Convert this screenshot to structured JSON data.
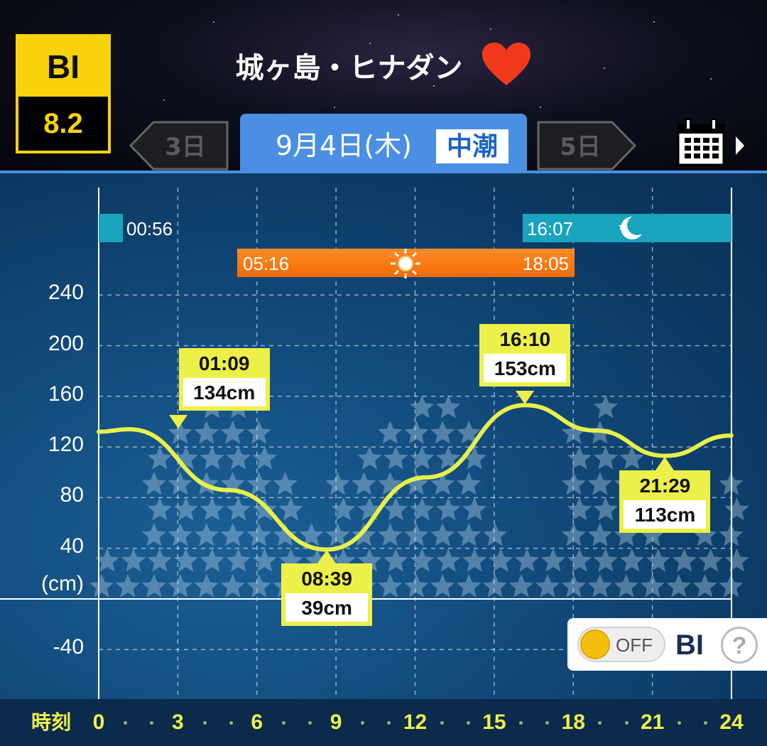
{
  "header": {
    "bi_label": "BI",
    "bi_value": "8.2",
    "spot_name": "城ヶ島・ヒナダン",
    "favorite_icon": "heart-icon",
    "prev_day": "3日",
    "next_day": "5日",
    "current_date": "9月4日(木)",
    "tide_type": "中潮",
    "calendar_icon": "calendar-icon"
  },
  "colors": {
    "accent_blue": "#4a8fe2",
    "bi_yellow": "#f7d20d",
    "curve": "#e8f04a",
    "sun_bar": "#f36b00",
    "moon_bar": "#1aa3bd",
    "heart": "#f0391c"
  },
  "moon": {
    "moonset": "00:56",
    "moonrise": "16:07",
    "icon": "moon-icon"
  },
  "sun": {
    "sunrise": "05:16",
    "sunset": "18:05",
    "icon": "sun-icon"
  },
  "bi_toggle": {
    "state": "OFF",
    "label": "BI",
    "help": "?"
  },
  "footer": {
    "time_label": "時刻"
  },
  "chart_data": {
    "type": "line",
    "y_unit_label": "(cm)",
    "x_ticks": [
      "0",
      "3",
      "6",
      "9",
      "12",
      "15",
      "18",
      "21",
      "24"
    ],
    "y_ticks": [
      "240",
      "200",
      "160",
      "120",
      "80",
      "40",
      "-40"
    ],
    "xlim": [
      0,
      24
    ],
    "ylim": [
      -70,
      270
    ],
    "grid": true,
    "series": [
      {
        "x": [
          0,
          1.15,
          4.88,
          8.65,
          12.42,
          16.17,
          18.83,
          21.48,
          24
        ],
        "y": [
          132,
          134,
          86,
          39,
          96,
          153,
          133,
          113,
          129
        ]
      }
    ],
    "extremes": [
      {
        "time": "01:09",
        "height": "134cm",
        "x": 1.15,
        "y": 134,
        "kind": "high"
      },
      {
        "time": "08:39",
        "height": "39cm",
        "x": 8.65,
        "y": 39,
        "kind": "low"
      },
      {
        "time": "16:10",
        "height": "153cm",
        "x": 16.17,
        "y": 153,
        "kind": "high"
      },
      {
        "time": "21:29",
        "height": "113cm",
        "x": 21.48,
        "y": 113,
        "kind": "low"
      }
    ],
    "bite_index_stars": [
      1,
      1,
      4,
      5,
      6,
      6,
      5,
      3,
      2,
      3,
      4,
      5,
      6,
      6,
      5,
      2,
      1,
      1,
      5,
      6,
      4,
      3,
      1,
      2,
      3
    ]
  }
}
